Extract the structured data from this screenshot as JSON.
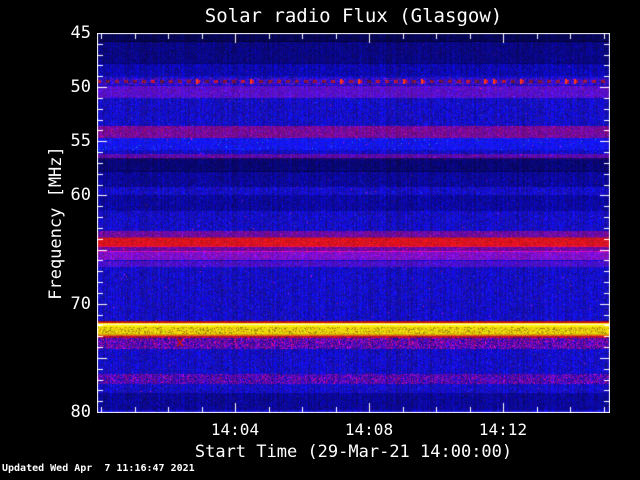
{
  "chart_data": {
    "type": "heatmap",
    "title": "Solar radio Flux (Glasgow)",
    "xlabel": "Start Time (29-Mar-21 14:00:00)",
    "ylabel": "Frequency [MHz]",
    "x_axis": {
      "unit": "time",
      "start_time": "14:00:00",
      "minutes_span": 15.3,
      "tick_labels": [
        {
          "label": "14:04",
          "minute": 4
        },
        {
          "label": "14:08",
          "minute": 8
        },
        {
          "label": "14:12",
          "minute": 12
        }
      ],
      "minor_tick_every_minutes": 1
    },
    "y_axis": {
      "min": 45,
      "max": 80,
      "inverted": true,
      "tick_labels": [
        {
          "label": "45",
          "freq": 45
        },
        {
          "label": "50",
          "freq": 50
        },
        {
          "label": "55",
          "freq": 55
        },
        {
          "label": "60",
          "freq": 60
        },
        {
          "label": "70",
          "freq": 70
        },
        {
          "label": "80",
          "freq": 80
        }
      ],
      "major_ticks": [
        45,
        50,
        55,
        60,
        65,
        70,
        75,
        80
      ],
      "minor_tick_every_mhz": 1
    },
    "colormap": {
      "background_blue": "#0a0ae0",
      "dark_blue": "#000066",
      "red": "#dd0a00",
      "maroon": "#8c1020",
      "purple": "#7a28c8",
      "yellow": "#f2e400",
      "white_line": "#ffffe8",
      "frame": "#ffffff",
      "text": "#ffffff",
      "page_background": "#000000"
    },
    "bands": [
      {
        "name": "very-dark-top-edge",
        "f1": 45.0,
        "f2": 45.7,
        "type": "dark",
        "strength": 0.75
      },
      {
        "name": "dark-noise-46mhz",
        "f1": 45.7,
        "f2": 47.8,
        "type": "dark",
        "strength": 0.45
      },
      {
        "name": "dim-48mhz",
        "f1": 47.8,
        "f2": 48.9,
        "type": "dark",
        "strength": 0.15
      },
      {
        "name": "dotted-rfi-49mhz",
        "f": 49.43,
        "type": "dotted_red",
        "spacing_px": 9
      },
      {
        "name": "purple-50mhz",
        "f1": 49.9,
        "f2": 50.9,
        "type": "purple",
        "strength": 0.38
      },
      {
        "name": "maroon-54mhz",
        "f1": 53.6,
        "f2": 54.6,
        "type": "maroon",
        "strength": 0.55
      },
      {
        "name": "bright-55mhz",
        "f1": 54.7,
        "f2": 55.7,
        "type": "bright",
        "strength": 0.5
      },
      {
        "name": "maroon-56mhz",
        "f1": 56.2,
        "f2": 56.5,
        "type": "maroon",
        "strength": 0.4
      },
      {
        "name": "dark-57mhz",
        "f1": 56.5,
        "f2": 57.7,
        "type": "dark",
        "strength": 0.55
      },
      {
        "name": "dark-58mhz",
        "f1": 57.7,
        "f2": 59.1,
        "type": "dark",
        "strength": 0.3
      },
      {
        "name": "dark-60mhz",
        "f1": 60.0,
        "f2": 61.3,
        "type": "dark",
        "strength": 0.25
      },
      {
        "name": "maroon-above-red",
        "f1": 63.3,
        "f2": 63.8,
        "type": "maroon",
        "strength": 0.5
      },
      {
        "name": "strong-red-64mhz",
        "f1": 63.8,
        "f2": 64.65,
        "type": "red",
        "strength": 0.95
      },
      {
        "name": "maroon-below-red",
        "f1": 64.65,
        "f2": 65.1,
        "type": "maroon",
        "strength": 0.5
      },
      {
        "name": "purple-65mhz",
        "f1": 65.1,
        "f2": 65.9,
        "type": "purple",
        "strength": 0.6
      },
      {
        "name": "purple-66mhz",
        "f1": 66.05,
        "f2": 66.5,
        "type": "purple",
        "strength": 0.3
      },
      {
        "name": "strong-yellow-72mhz",
        "f1": 71.57,
        "f2": 73.05,
        "type": "yellow",
        "strength": 1.0
      },
      {
        "name": "purple-red-73mhz",
        "f1": 73.05,
        "f2": 74.07,
        "type": "purple_red",
        "strength": 0.5
      },
      {
        "name": "purple-red-77mhz",
        "f1": 76.47,
        "f2": 77.3,
        "type": "purple_red",
        "strength": 0.4
      },
      {
        "name": "dark-79mhz",
        "f1": 78.2,
        "f2": 79.7,
        "type": "dark",
        "strength": 0.3
      }
    ],
    "marker": {
      "name": "small-red-burst-mark",
      "minute": 2.36,
      "freq": 73.6,
      "color": "#dd1400"
    }
  },
  "footer": {
    "updated": "Updated Wed Apr  7 11:16:47 2021"
  }
}
